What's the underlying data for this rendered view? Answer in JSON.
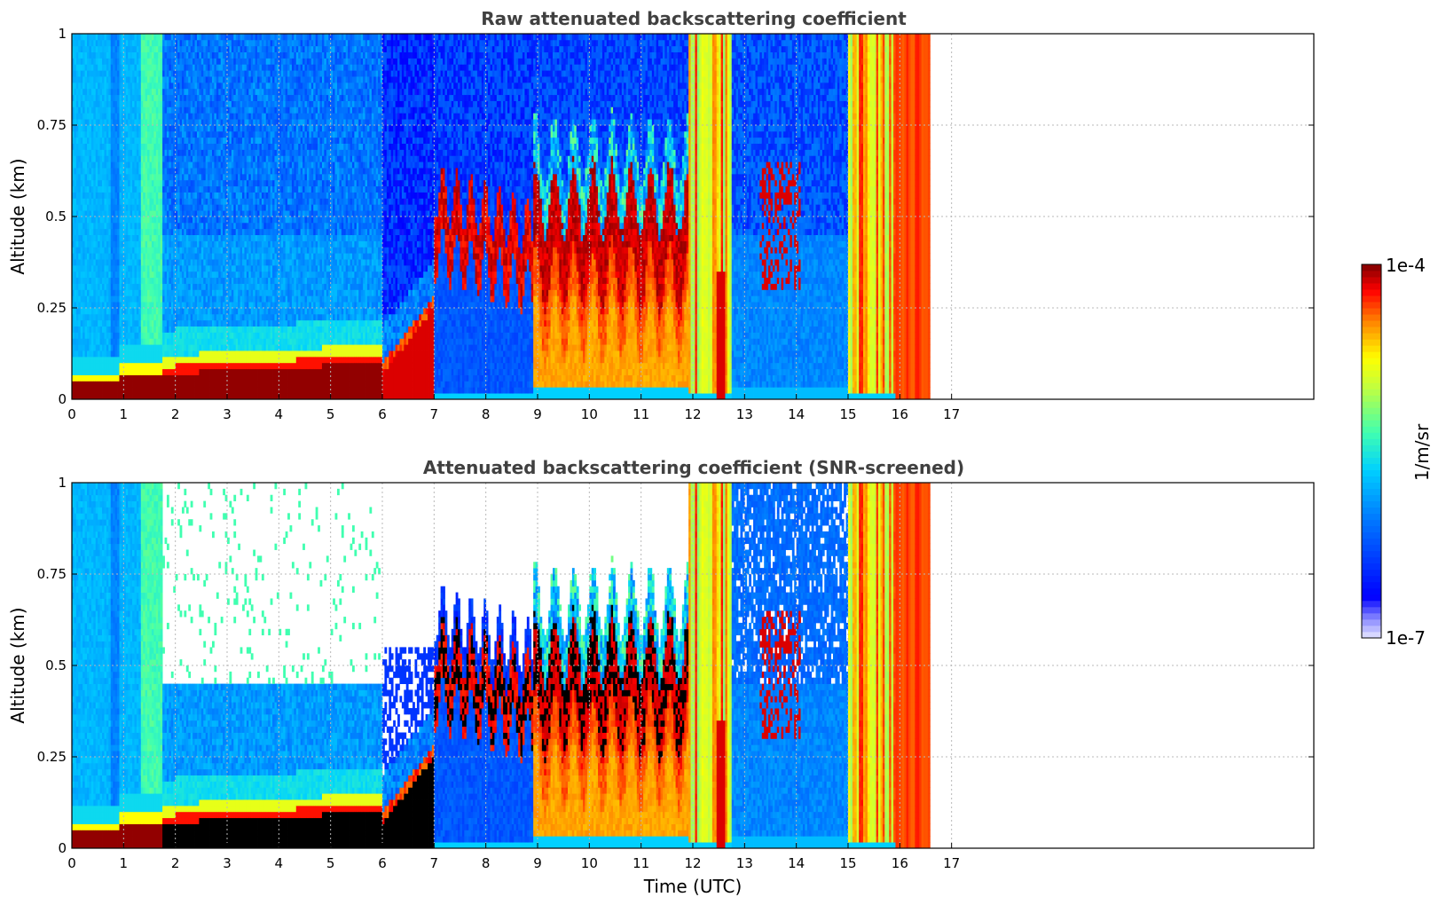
{
  "chart_data": [
    {
      "type": "heatmap",
      "title": "Raw attenuated backscattering coefficient",
      "xlabel": "",
      "ylabel": "Altitude (km)",
      "xlim": [
        0,
        24
      ],
      "ylim": [
        0,
        1
      ],
      "x_ticks": [
        0,
        1,
        2,
        3,
        4,
        5,
        6,
        7,
        8,
        9,
        10,
        11,
        12,
        13,
        14,
        15,
        16,
        17
      ],
      "y_ticks": [
        {
          "value": 0,
          "label": "0"
        },
        {
          "value": 0.25,
          "label": "0.25"
        },
        {
          "value": 0.5,
          "label": "0.5"
        },
        {
          "value": 0.75,
          "label": "0.75"
        },
        {
          "value": 1,
          "label": "1"
        }
      ],
      "grid": true,
      "screened": false,
      "data_end_hour": 16.6,
      "time_segments": [
        {
          "t0": 0.0,
          "t1": 1.75,
          "regime": "early-layer",
          "layer_top_km": 0.045,
          "cloud": false
        },
        {
          "t0": 1.75,
          "t1": 6.0,
          "regime": "noisy-above-layer",
          "layer_top_km": 0.09,
          "cloud": false
        },
        {
          "t0": 6.0,
          "t1": 7.0,
          "regime": "transition",
          "layer_top_km": 0.16,
          "cloud": false
        },
        {
          "t0": 7.0,
          "t1": 8.9,
          "regime": "cloud-base",
          "cloud_base_km": 0.45,
          "cloud": true
        },
        {
          "t0": 8.9,
          "t1": 11.9,
          "regime": "cloud-thick",
          "cloud_base_km": 0.3,
          "cloud": true
        },
        {
          "t0": 11.9,
          "t1": 12.75,
          "regime": "bright-columns",
          "cloud": true
        },
        {
          "t0": 12.75,
          "t1": 15.0,
          "regime": "blue-scattered",
          "cloud": true
        },
        {
          "t0": 15.0,
          "t1": 16.6,
          "regime": "bright-columns",
          "cloud": true
        }
      ]
    },
    {
      "type": "heatmap",
      "title": "Attenuated backscattering coefficient (SNR-screened)",
      "xlabel": "Time (UTC)",
      "ylabel": "Altitude (km)",
      "xlim": [
        0,
        24
      ],
      "ylim": [
        0,
        1
      ],
      "x_ticks": [
        0,
        1,
        2,
        3,
        4,
        5,
        6,
        7,
        8,
        9,
        10,
        11,
        12,
        13,
        14,
        15,
        16,
        17
      ],
      "y_ticks": [
        {
          "value": 0,
          "label": "0"
        },
        {
          "value": 0.25,
          "label": "0.25"
        },
        {
          "value": 0.5,
          "label": "0.5"
        },
        {
          "value": 0.75,
          "label": "0.75"
        },
        {
          "value": 1,
          "label": "1"
        }
      ],
      "grid": true,
      "screened": true,
      "data_end_hour": 16.6
    }
  ],
  "colorbar": {
    "label": "1/m/sr",
    "min_label": "1e-7",
    "max_label": "1e-4",
    "scale": "log",
    "range": [
      1e-07,
      0.0001
    ],
    "colormap": "jet"
  }
}
